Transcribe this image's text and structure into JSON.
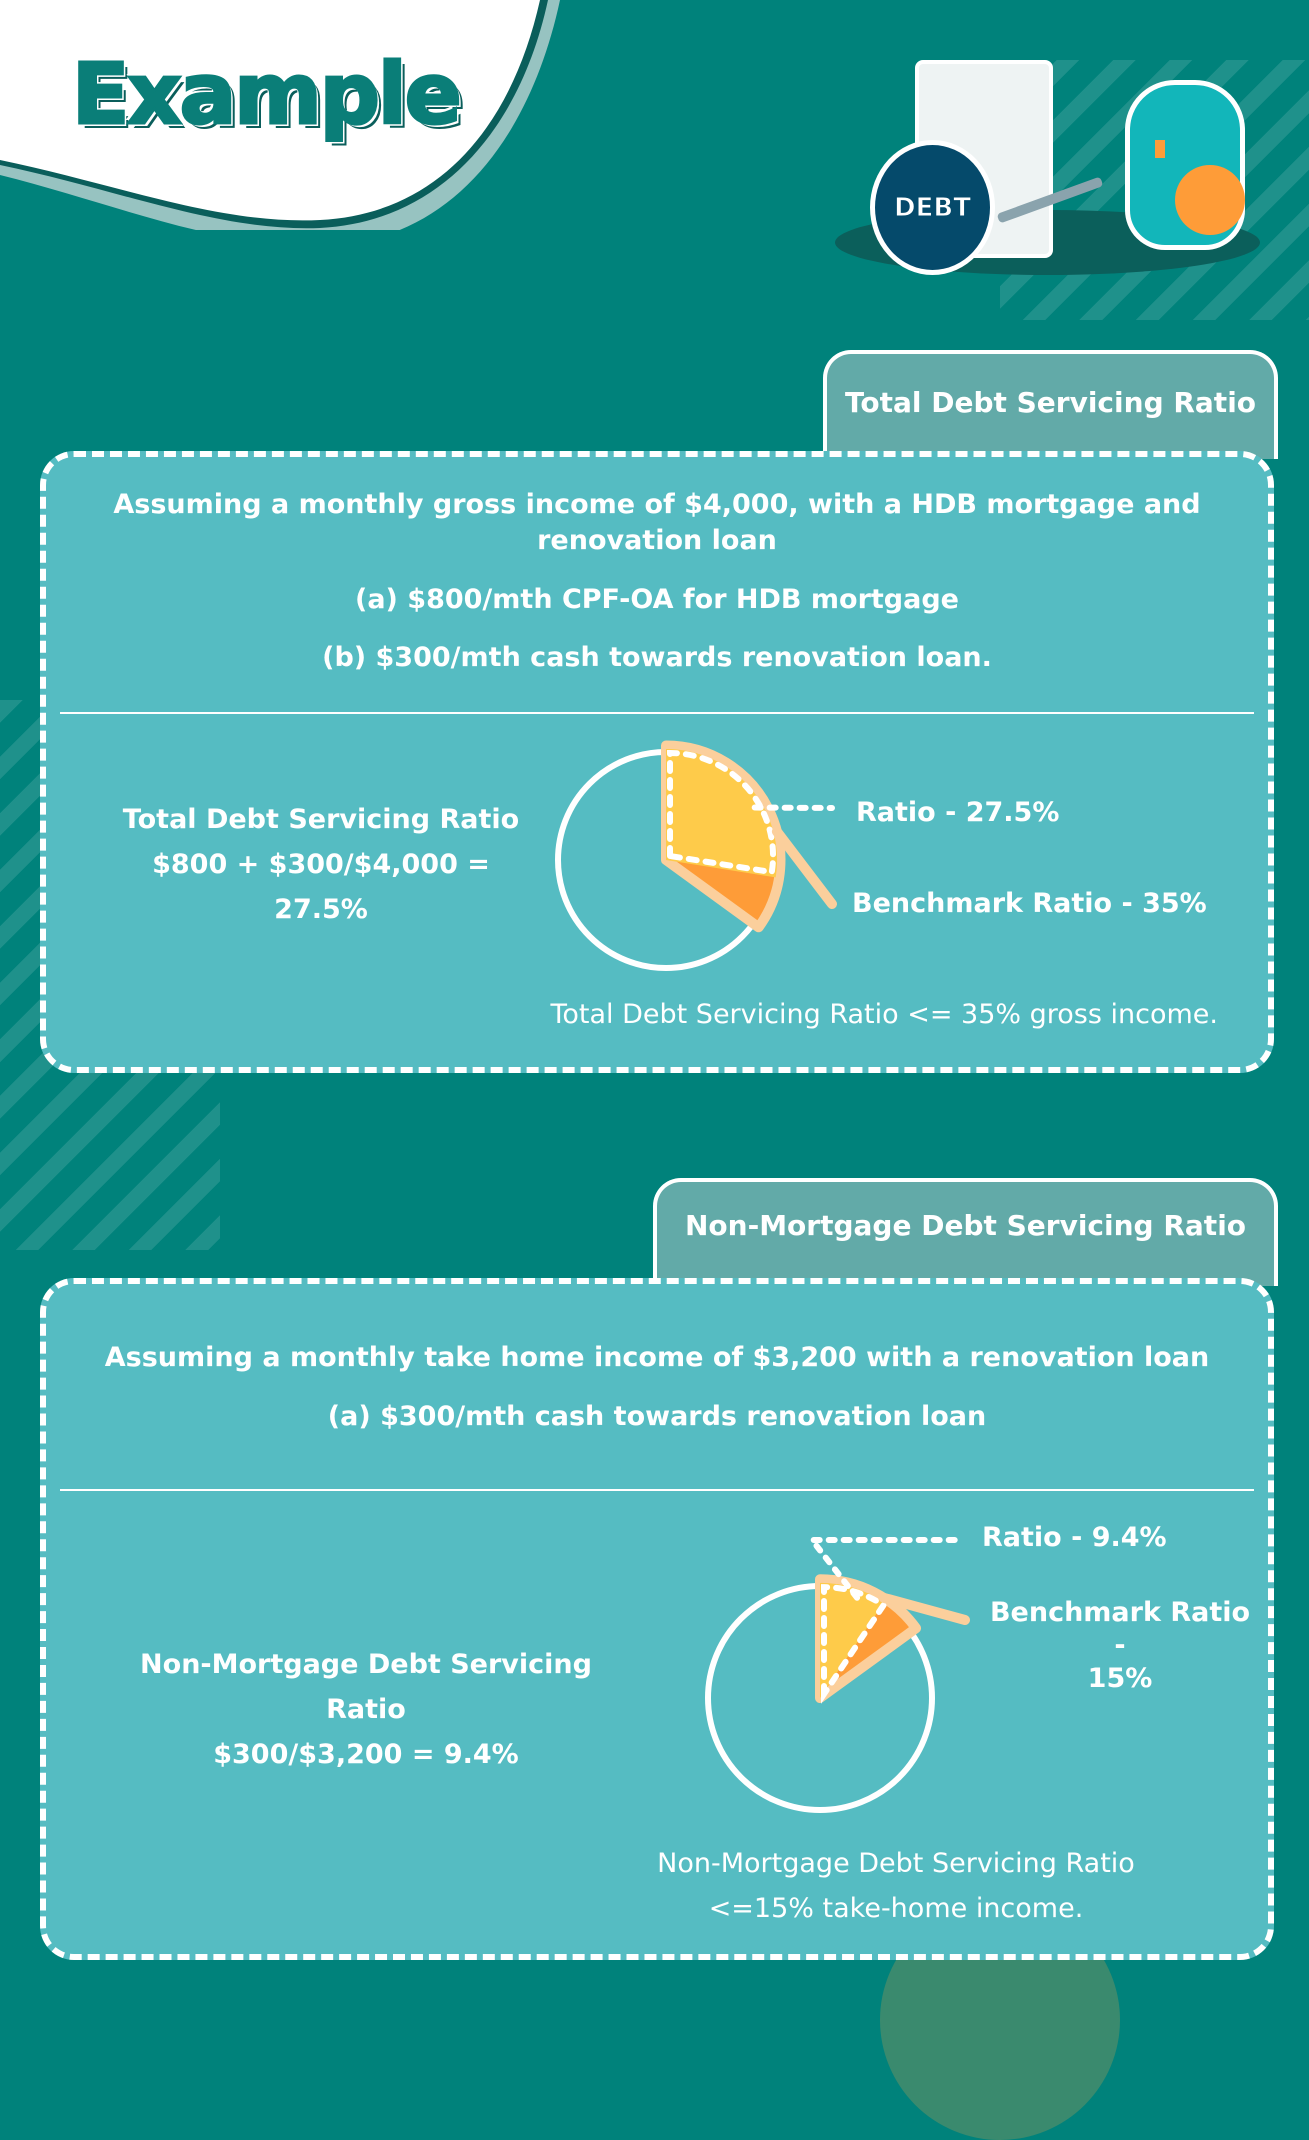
{
  "header": {
    "title": "Example",
    "illustration_label": "DEBT"
  },
  "colors": {
    "background": "#00827b",
    "card": "#55bcc2",
    "tab": "#62aaa8",
    "ratio_fill": "#fecb4a",
    "benchmark_fill": "#fe9c38",
    "outline": "#fbcf9c"
  },
  "section1": {
    "tab": "Total Debt Servicing Ratio",
    "lines": [
      "Assuming a monthly gross income of $4,000, with a HDB mortgage and",
      "renovation loan",
      "(a) $800/mth CPF-OA for HDB mortgage",
      "(b) $300/mth cash towards renovation loan."
    ],
    "calc_title": "Total Debt Servicing Ratio",
    "calc_formula": "$800 + $300/$4,000 = 27.5%",
    "ratio_label": "Ratio - 27.5%",
    "benchmark_label": "Benchmark Ratio - 35%",
    "footer": "Total Debt Servicing Ratio <= 35% gross income."
  },
  "section2": {
    "tab": "Non-Mortgage Debt Servicing Ratio",
    "lines": [
      "Assuming a monthly take home income of $3,200 with a renovation loan",
      "(a) $300/mth cash towards renovation loan"
    ],
    "calc_title": "Non-Mortgage Debt Servicing Ratio",
    "calc_formula": "$300/$3,200 = 9.4%",
    "ratio_label": "Ratio - 9.4%",
    "benchmark_label_1": "Benchmark Ratio -",
    "benchmark_label_2": "15%",
    "footer_1": "Non-Mortgage Debt Servicing Ratio",
    "footer_2": "<=15% take-home income."
  },
  "chart_data": [
    {
      "type": "pie",
      "series": [
        {
          "name": "Ratio",
          "value": 27.5
        },
        {
          "name": "Benchmark Ratio",
          "value": 35
        }
      ]
    },
    {
      "type": "pie",
      "series": [
        {
          "name": "Ratio",
          "value": 9.4
        },
        {
          "name": "Benchmark Ratio",
          "value": 15
        }
      ]
    }
  ]
}
